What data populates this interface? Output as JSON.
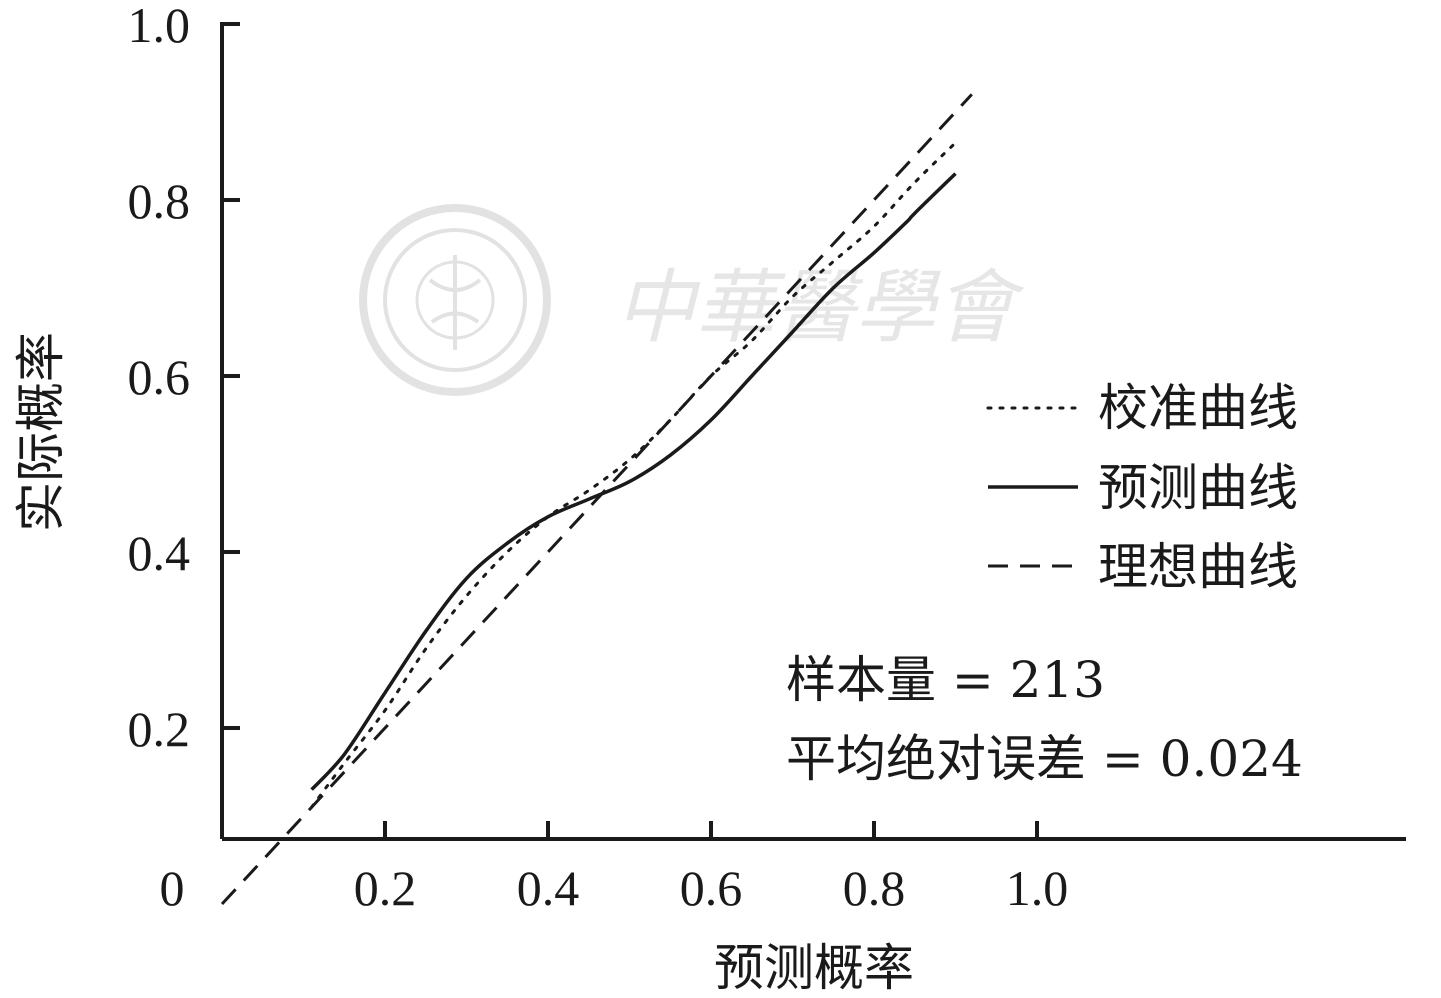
{
  "chart_data": {
    "type": "line",
    "xlabel": "预测概率",
    "ylabel": "实际概率",
    "xlim": [
      0,
      1.0
    ],
    "ylim": [
      0,
      1.0
    ],
    "grid": false,
    "legend_position": "right",
    "x_ticks": [
      0.2,
      0.4,
      0.6,
      0.8,
      1.0
    ],
    "y_ticks": [
      0.2,
      0.4,
      0.6,
      0.8,
      1.0
    ],
    "x_tick_labels": [
      "0.2",
      "0.4",
      "0.6",
      "0.8",
      "1.0"
    ],
    "y_tick_labels": [
      "0.2",
      "0.4",
      "0.6",
      "0.8",
      "1.0"
    ],
    "origin_label": "0",
    "series": [
      {
        "name": "校准曲线",
        "style": "dotted",
        "x": [
          0.11,
          0.15,
          0.2,
          0.25,
          0.3,
          0.35,
          0.4,
          0.45,
          0.5,
          0.55,
          0.6,
          0.65,
          0.7,
          0.75,
          0.8,
          0.85,
          0.9
        ],
        "y": [
          0.11,
          0.16,
          0.22,
          0.29,
          0.35,
          0.4,
          0.44,
          0.47,
          0.505,
          0.55,
          0.6,
          0.64,
          0.69,
          0.73,
          0.77,
          0.82,
          0.865
        ]
      },
      {
        "name": "预测曲线",
        "style": "solid",
        "x": [
          0.11,
          0.15,
          0.2,
          0.25,
          0.3,
          0.35,
          0.4,
          0.45,
          0.5,
          0.55,
          0.6,
          0.65,
          0.7,
          0.75,
          0.8,
          0.84,
          0.85,
          0.9
        ],
        "y": [
          0.13,
          0.17,
          0.24,
          0.31,
          0.37,
          0.41,
          0.44,
          0.46,
          0.48,
          0.51,
          0.55,
          0.6,
          0.65,
          0.7,
          0.74,
          0.775,
          0.785,
          0.83
        ]
      },
      {
        "name": "理想曲线",
        "style": "dashed",
        "x": [
          0.0,
          0.92
        ],
        "y": [
          0.0,
          0.92
        ]
      }
    ],
    "annotations": [
      "样本量 = 213",
      "平均绝对误差 = 0.024"
    ]
  },
  "watermark": {
    "text": "中華醫學會"
  }
}
